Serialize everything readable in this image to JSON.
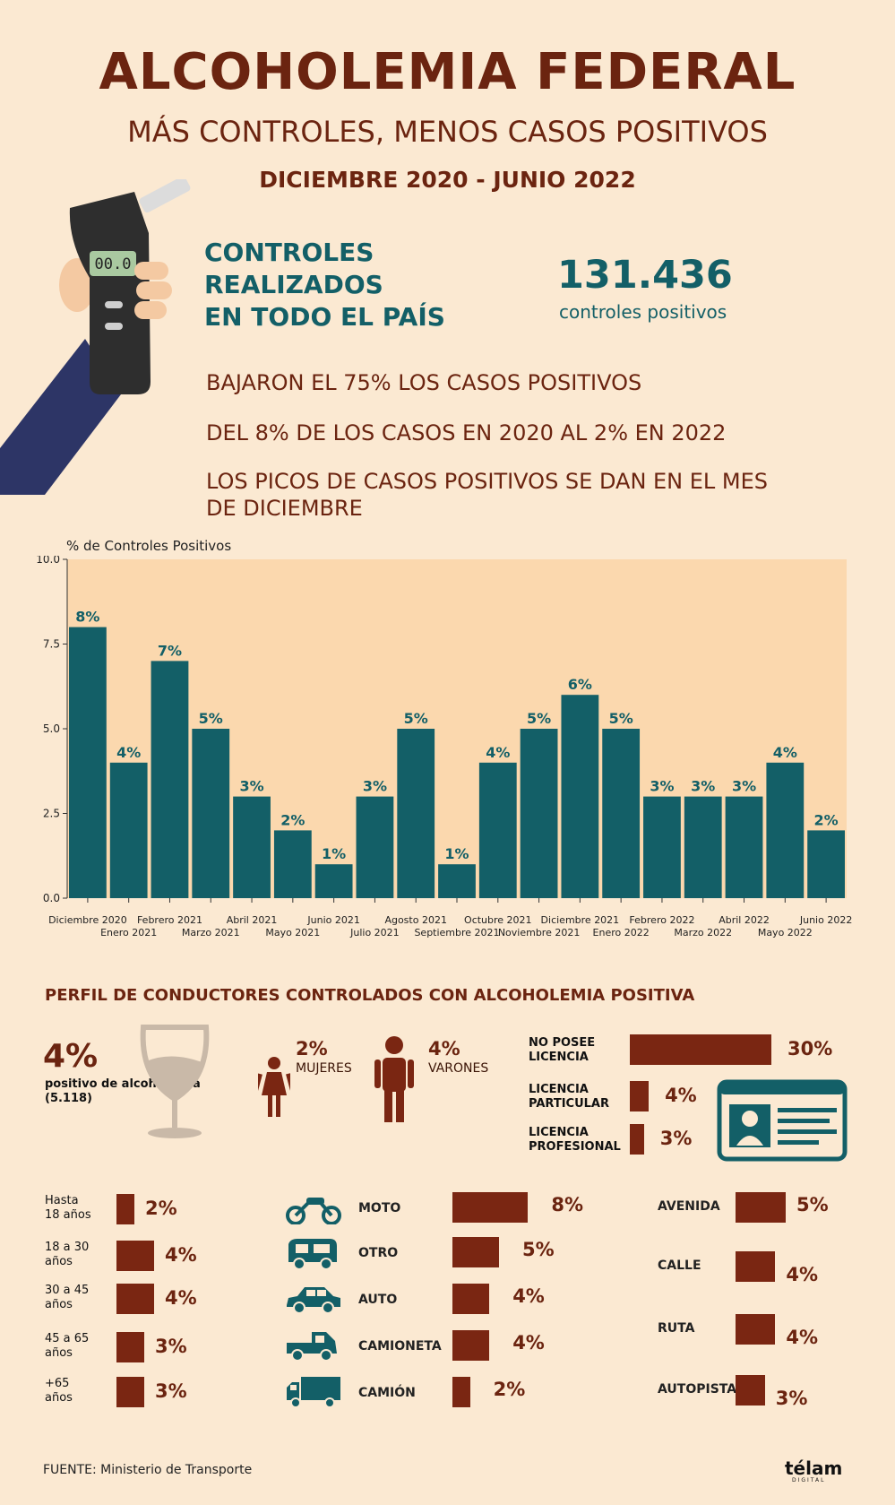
{
  "header": {
    "title": "ALCOHOLEMIA FEDERAL",
    "subtitle": "MÁS CONTROLES, MENOS CASOS POSITIVOS",
    "date_range": "DICIEMBRE 2020 - JUNIO 2022"
  },
  "device_display": "00.0",
  "summary": {
    "label_line1": "CONTROLES",
    "label_line2": "REALIZADOS",
    "label_line3": "EN TODO EL PAÍS",
    "number": "131.436",
    "number_caption": "controles positivos",
    "fact1": "BAJARON EL 75% LOS CASOS POSITIVOS",
    "fact2": "DEL 8% DE LOS CASOS EN 2020 AL 2% EN 2022",
    "fact3": "LOS PICOS DE CASOS POSITIVOS SE DAN EN EL MES DE DICIEMBRE"
  },
  "chart_data": {
    "type": "bar",
    "ylabel": "% de Controles Positivos",
    "ylim": [
      0,
      10
    ],
    "yticks": [
      "0.0",
      "2.5",
      "5.0",
      "7.5",
      "10.0"
    ],
    "yticks_values": [
      0,
      2.5,
      5,
      7.5,
      10
    ],
    "categories": [
      "Diciembre 2020",
      "Enero 2021",
      "Febrero 2021",
      "Marzo 2021",
      "Abril 2021",
      "Mayo 2021",
      "Junio 2021",
      "Julio 2021",
      "Agosto 2021",
      "Septiembre 2021",
      "Octubre 2021",
      "Noviembre 2021",
      "Diciembre 2021",
      "Enero 2022",
      "Febrero 2022",
      "Marzo 2022",
      "Abril 2022",
      "Mayo 2022",
      "Junio 2022"
    ],
    "values": [
      8,
      4,
      7,
      5,
      3,
      2,
      1,
      3,
      5,
      1,
      4,
      5,
      6,
      5,
      3,
      3,
      3,
      4,
      2
    ],
    "data_labels": [
      "8%",
      "4%",
      "7%",
      "5%",
      "3%",
      "2%",
      "1%",
      "3%",
      "5%",
      "1%",
      "4%",
      "5%",
      "6%",
      "5%",
      "3%",
      "3%",
      "3%",
      "4%",
      "2%"
    ],
    "grid": false,
    "colors": {
      "bar": "#135f67",
      "plot_bg": "#fbd8ae"
    }
  },
  "profile": {
    "section_title": "PERFIL DE CONDUCTORES CONTROLADOS CON ALCOHOLEMIA POSITIVA",
    "overall_pct": "4%",
    "overall_label": "positivo de alcoholemia",
    "overall_count": "(5.118)",
    "women_pct": "2%",
    "women_label": "MUJERES",
    "men_pct": "4%",
    "men_label": "VARONES",
    "license": [
      {
        "line1": "NO POSEE",
        "line2": "LICENCIA",
        "pct": "30%",
        "value": 30
      },
      {
        "line1": "LICENCIA",
        "line2": "PARTICULAR",
        "pct": "4%",
        "value": 4
      },
      {
        "line1": "LICENCIA",
        "line2": "PROFESIONAL",
        "pct": "3%",
        "value": 3
      }
    ],
    "ages": [
      {
        "line1": "Hasta",
        "line2": "18 años",
        "pct": "2%",
        "value": 2
      },
      {
        "line1": "18 a 30",
        "line2": "años",
        "pct": "4%",
        "value": 4
      },
      {
        "line1": "30 a 45",
        "line2": "años",
        "pct": "4%",
        "value": 4
      },
      {
        "line1": "45 a 65",
        "line2": "años",
        "pct": "3%",
        "value": 3
      },
      {
        "line1": "+65",
        "line2": "años",
        "pct": "3%",
        "value": 3
      }
    ],
    "vehicles": [
      {
        "label": "MOTO",
        "pct": "8%",
        "value": 8,
        "icon": "motorcycle-icon"
      },
      {
        "label": "OTRO",
        "pct": "5%",
        "value": 5,
        "icon": "van-icon"
      },
      {
        "label": "AUTO",
        "pct": "4%",
        "value": 4,
        "icon": "car-icon"
      },
      {
        "label": "CAMIONETA",
        "pct": "4%",
        "value": 4,
        "icon": "pickup-icon"
      },
      {
        "label": "CAMIÓN",
        "pct": "2%",
        "value": 2,
        "icon": "truck-icon"
      }
    ],
    "roads": [
      {
        "label": "AVENIDA",
        "pct": "5%",
        "value": 5
      },
      {
        "label": "CALLE",
        "pct": "4%",
        "value": 4
      },
      {
        "label": "RUTA",
        "pct": "4%",
        "value": 4
      },
      {
        "label": "AUTOPISTA",
        "pct": "3%",
        "value": 3
      }
    ]
  },
  "footer": {
    "source": "FUENTE: Ministerio de Transporte",
    "logo": "télam",
    "logo_sub": "DIGITAL"
  },
  "colors": {
    "background": "#fbe9d2",
    "brown": "#6b2410",
    "bar_brown": "#7a2612",
    "teal": "#135f67"
  }
}
